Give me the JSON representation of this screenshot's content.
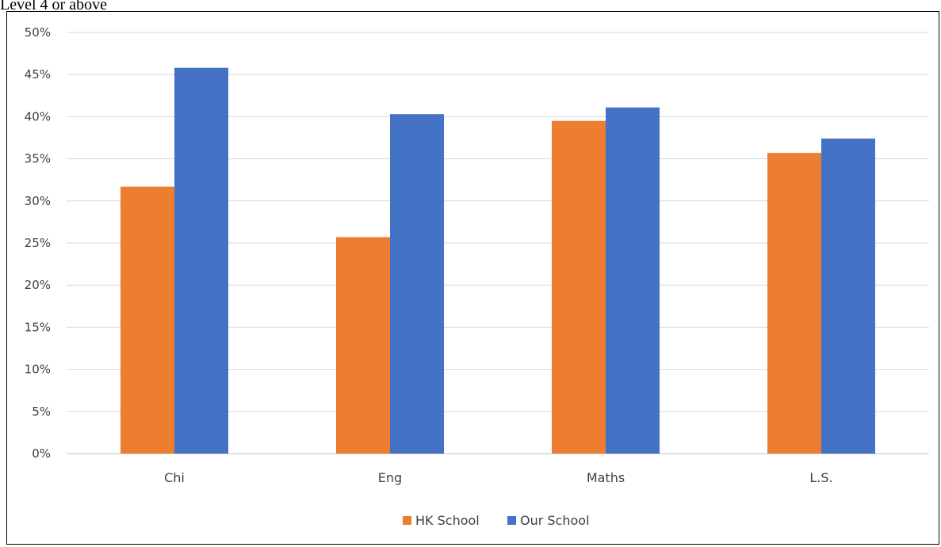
{
  "caption": "Level 4 or above",
  "colors": {
    "hk_school": "#ED7D31",
    "our_school": "#4472C4",
    "grid": "#D9D9D9",
    "text": "#404040"
  },
  "chart_data": {
    "type": "bar",
    "categories": [
      "Chi",
      "Eng",
      "Maths",
      "L.S."
    ],
    "series": [
      {
        "name": "HK School",
        "values": [
          31.7,
          25.7,
          39.5,
          35.7
        ]
      },
      {
        "name": "Our School",
        "values": [
          45.8,
          40.3,
          41.1,
          37.4
        ]
      }
    ],
    "ylim": [
      0,
      50
    ],
    "yticks": [
      "0%",
      "5%",
      "10%",
      "15%",
      "20%",
      "25%",
      "30%",
      "35%",
      "40%",
      "45%",
      "50%"
    ],
    "grid": true,
    "legend_position": "bottom"
  }
}
